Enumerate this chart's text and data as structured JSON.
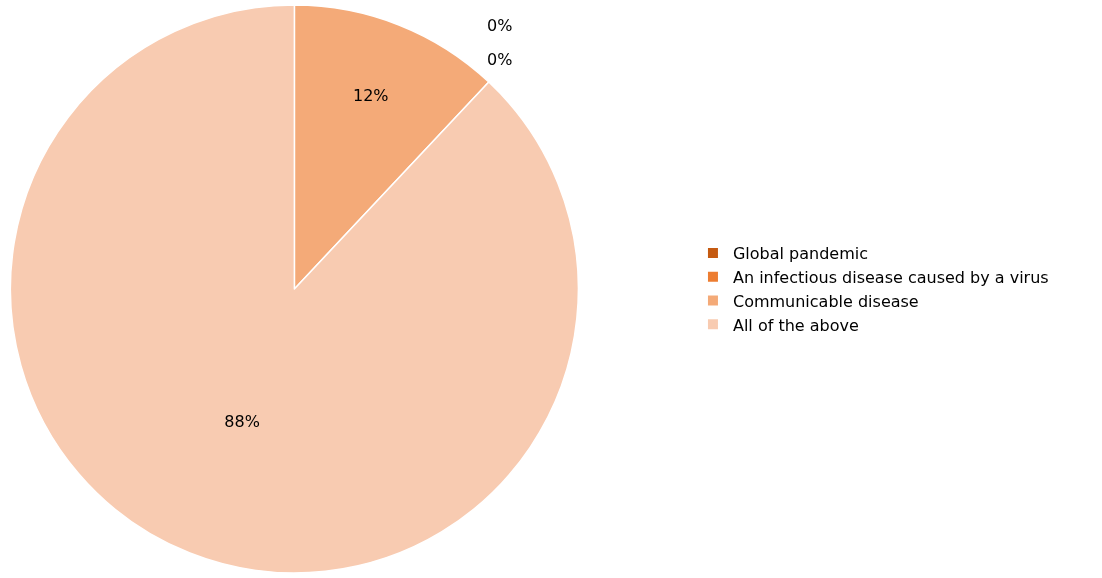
{
  "chart_data": {
    "type": "pie",
    "categories": [
      "Global pandemic",
      "An infectious disease caused by a virus",
      "Communicable disease",
      "All of the above"
    ],
    "values": [
      0,
      0,
      12,
      88
    ],
    "colors": [
      "#c55a11",
      "#ed7d31",
      "#f4aa78",
      "#f8cbb1"
    ],
    "value_labels": [
      "0%",
      "0%",
      "12%",
      "88%"
    ],
    "legend": "right"
  }
}
